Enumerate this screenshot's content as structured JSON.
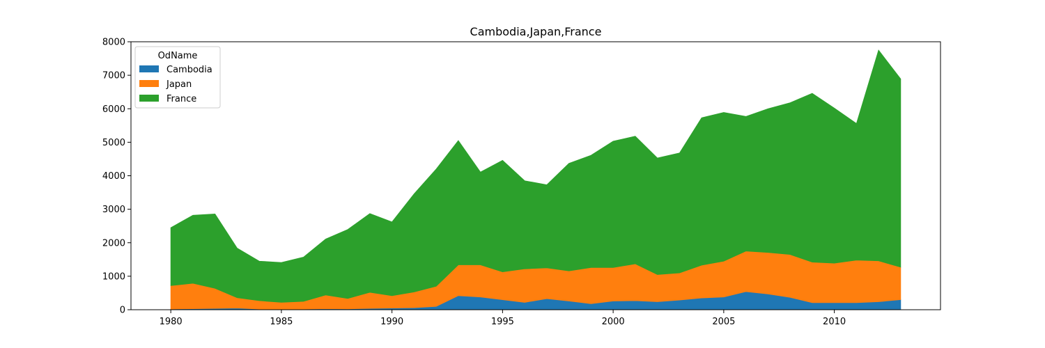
{
  "chart_data": {
    "type": "area",
    "stacked": true,
    "title": "Cambodia,Japan,France",
    "xlabel": "",
    "ylabel": "",
    "xlim": [
      1978.2,
      2014.8
    ],
    "ylim": [
      0,
      8000
    ],
    "xticks": [
      "1980",
      "1985",
      "1990",
      "1995",
      "2000",
      "2005",
      "2010"
    ],
    "yticks": [
      "0",
      "1000",
      "2000",
      "3000",
      "4000",
      "5000",
      "6000",
      "7000",
      "8000"
    ],
    "grid": false,
    "legend": {
      "title": "OdName",
      "placement": "top-left"
    },
    "x": [
      1980,
      1981,
      1982,
      1983,
      1984,
      1985,
      1986,
      1987,
      1988,
      1989,
      1990,
      1991,
      1992,
      1993,
      1994,
      1995,
      1996,
      1997,
      1998,
      1999,
      2000,
      2001,
      2002,
      2003,
      2004,
      2005,
      2006,
      2007,
      2008,
      2009,
      2010,
      2011,
      2012,
      2013
    ],
    "series": [
      {
        "name": "Cambodia",
        "color": "#1f77b4",
        "values": [
          20,
          30,
          40,
          50,
          20,
          10,
          20,
          30,
          25,
          40,
          50,
          60,
          100,
          420,
          380,
          300,
          220,
          330,
          260,
          180,
          260,
          270,
          240,
          290,
          350,
          380,
          540,
          470,
          370,
          210,
          210,
          210,
          240,
          300
        ]
      },
      {
        "name": "Japan",
        "color": "#ff7f0e",
        "values": [
          700,
          760,
          600,
          310,
          250,
          210,
          230,
          410,
          310,
          480,
          370,
          470,
          600,
          920,
          960,
          830,
          1000,
          920,
          900,
          1080,
          1000,
          1100,
          810,
          810,
          980,
          1070,
          1210,
          1240,
          1280,
          1210,
          1180,
          1270,
          1220,
          970
        ]
      },
      {
        "name": "France",
        "color": "#2ca02c",
        "values": [
          1730,
          2030,
          2220,
          1480,
          1180,
          1190,
          1320,
          1670,
          2060,
          2350,
          2200,
          2930,
          3500,
          3710,
          2770,
          3330,
          2630,
          2480,
          3210,
          3350,
          3770,
          3810,
          3480,
          3580,
          4400,
          4440,
          4020,
          4290,
          4530,
          5040,
          4630,
          4080,
          6290,
          5620
        ]
      }
    ]
  }
}
